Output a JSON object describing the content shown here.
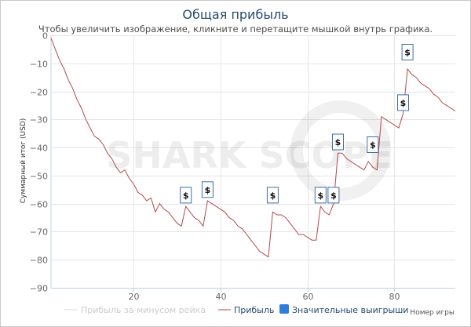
{
  "title": "Общая прибыль",
  "subtitle": "Чтобы увеличить изображение, кликните и перетащите мышкой внутрь графика.",
  "watermark": "SHARK SCOPE",
  "chart_data": {
    "type": "line",
    "title": "Общая прибыль",
    "xlabel": "Номер игры",
    "ylabel": "Суммарный итог (USD)",
    "xlim": [
      1,
      94
    ],
    "ylim": [
      -90,
      0
    ],
    "xticks": [
      "20",
      "40",
      "60",
      "80"
    ],
    "xtick_values": [
      20,
      40,
      60,
      80
    ],
    "yticks": [
      "0",
      "−10",
      "−20",
      "−30",
      "−40",
      "−50",
      "−60",
      "−70",
      "−80",
      "−90"
    ],
    "ytick_values": [
      0,
      -10,
      -20,
      -30,
      -40,
      -50,
      -60,
      -70,
      -80,
      -90
    ],
    "series": [
      {
        "name": "Прибыль",
        "color": "#b24a4a",
        "x": [
          1,
          2,
          3,
          4,
          5,
          6,
          7,
          8,
          9,
          10,
          11,
          12,
          13,
          14,
          15,
          16,
          17,
          18,
          19,
          20,
          21,
          22,
          23,
          24,
          25,
          26,
          27,
          28,
          29,
          30,
          31,
          32,
          33,
          34,
          35,
          36,
          37,
          38,
          39,
          40,
          41,
          42,
          43,
          44,
          45,
          46,
          47,
          48,
          49,
          50,
          51,
          52,
          53,
          54,
          55,
          56,
          57,
          58,
          59,
          60,
          61,
          62,
          63,
          64,
          65,
          66,
          67,
          68,
          69,
          70,
          71,
          72,
          73,
          74,
          75,
          76,
          77,
          78,
          79,
          80,
          81,
          82,
          83,
          84,
          85,
          86,
          87,
          88,
          89,
          90,
          91,
          92,
          93,
          94
        ],
        "values": [
          -1,
          -5,
          -9,
          -12,
          -16,
          -19,
          -23,
          -26,
          -30,
          -33,
          -36,
          -37,
          -39,
          -42,
          -44,
          -47,
          -49,
          -48,
          -51,
          -53,
          -56,
          -57,
          -59,
          -58,
          -63,
          -60,
          -62,
          -63,
          -65,
          -67,
          -68,
          -61,
          -63,
          -65,
          -66,
          -68,
          -59,
          -60,
          -61,
          -62,
          -63,
          -65,
          -66,
          -68,
          -69,
          -71,
          -73,
          -75,
          -77,
          -78,
          -79,
          -63,
          -64,
          -64,
          -65,
          -67,
          -69,
          -71,
          -71,
          -72,
          -73,
          -73,
          -61,
          -63,
          -64,
          -60,
          -42,
          -42,
          -44,
          -45,
          -46,
          -47,
          -48,
          -45,
          -47,
          -48,
          -29,
          -30,
          -31,
          -32,
          -33,
          -28,
          -12,
          -14,
          -15,
          -17,
          -18,
          -19,
          -21,
          -22,
          -24,
          -25,
          -26,
          -27
        ]
      },
      {
        "name": "Прибыль за минусом рейка",
        "color": "#d9d9d9",
        "hidden": true,
        "x": [],
        "values": []
      }
    ],
    "significant_wins": {
      "name": "Значительные выигрыши",
      "symbol": "$",
      "x": [
        32,
        37,
        52,
        63,
        66,
        67,
        75,
        82,
        83
      ],
      "values": [
        -57,
        -55,
        -57,
        -57,
        -57,
        -38,
        -39,
        -24,
        -6
      ]
    },
    "legend": [
      "Прибыль за минусом рейка",
      "Прибыль",
      "Значительные выигрыши"
    ],
    "legend_position": "bottom-right"
  }
}
